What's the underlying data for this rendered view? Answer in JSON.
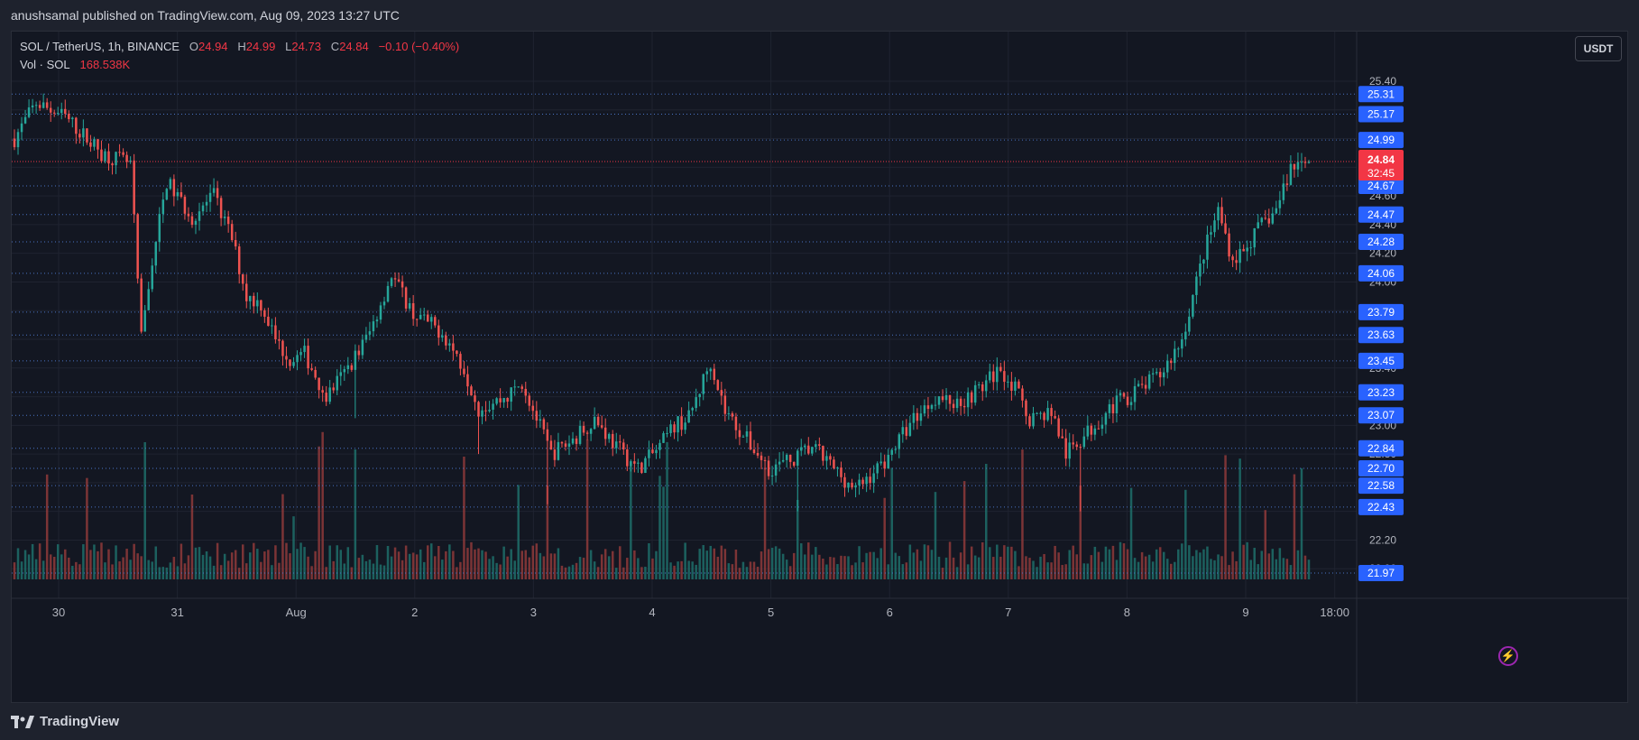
{
  "header": {
    "published_line": "anushsamal published on TradingView.com, Aug 09, 2023 13:27 UTC"
  },
  "legend": {
    "symbol": "SOL / TetherUS, 1h, BINANCE",
    "open_label": "O",
    "open": "24.94",
    "high_label": "H",
    "high": "24.99",
    "low_label": "L",
    "low": "24.73",
    "close_label": "C",
    "close": "24.84",
    "change": "−0.10 (−0.40%)",
    "vol_label": "Vol · SOL",
    "vol_value": "168.538K"
  },
  "currency_button": "USDT",
  "brand": "TradingView",
  "colors": {
    "up": "#26a69a",
    "down": "#ef5350",
    "background": "#131722",
    "grid": "#1f2330",
    "level_line": "#4a73c4",
    "price_label": "#2962ff",
    "current_price": "#f23645"
  },
  "chart_data": {
    "type": "candlestick",
    "symbol": "SOL / TetherUS",
    "interval": "1h",
    "exchange": "BINANCE",
    "ylim": [
      21.9,
      25.5
    ],
    "y_ticks": [
      "25.40",
      "25.20",
      "25.00",
      "24.80",
      "24.60",
      "24.40",
      "24.20",
      "24.00",
      "23.80",
      "23.60",
      "23.40",
      "23.20",
      "23.00",
      "22.80",
      "22.60",
      "22.40",
      "22.20",
      "22.00"
    ],
    "x_ticks": [
      {
        "label": "30",
        "day": 0
      },
      {
        "label": "31",
        "day": 1
      },
      {
        "label": "Aug",
        "day": 2
      },
      {
        "label": "2",
        "day": 3
      },
      {
        "label": "3",
        "day": 4
      },
      {
        "label": "4",
        "day": 5
      },
      {
        "label": "5",
        "day": 6
      },
      {
        "label": "6",
        "day": 7
      },
      {
        "label": "7",
        "day": 8
      },
      {
        "label": "8",
        "day": 9
      },
      {
        "label": "9",
        "day": 10
      },
      {
        "label": "18:00",
        "day": 10.75
      }
    ],
    "horizontal_levels": [
      "25.31",
      "25.17",
      "24.99",
      "24.67",
      "24.47",
      "24.28",
      "24.06",
      "23.79",
      "23.63",
      "23.45",
      "23.23",
      "23.07",
      "22.84",
      "22.70",
      "22.58",
      "22.43",
      "21.97"
    ],
    "current_price": {
      "value": "24.84",
      "countdown": "32:45"
    },
    "anchors": [
      [
        0,
        25.0
      ],
      [
        6,
        25.25
      ],
      [
        14,
        25.15
      ],
      [
        24,
        24.9
      ],
      [
        32,
        24.82
      ],
      [
        35,
        23.6
      ],
      [
        38,
        24.15
      ],
      [
        42,
        24.7
      ],
      [
        49,
        24.45
      ],
      [
        55,
        24.6
      ],
      [
        60,
        24.3
      ],
      [
        64,
        23.9
      ],
      [
        68,
        23.85
      ],
      [
        72,
        23.6
      ],
      [
        76,
        23.45
      ],
      [
        80,
        23.5
      ],
      [
        86,
        23.2
      ],
      [
        92,
        23.4
      ],
      [
        98,
        23.65
      ],
      [
        104,
        24.05
      ],
      [
        110,
        23.78
      ],
      [
        118,
        23.65
      ],
      [
        124,
        23.4
      ],
      [
        128,
        23.12
      ],
      [
        136,
        23.2
      ],
      [
        140,
        23.3
      ],
      [
        148,
        22.8
      ],
      [
        154,
        22.9
      ],
      [
        160,
        23.05
      ],
      [
        166,
        22.85
      ],
      [
        172,
        22.7
      ],
      [
        178,
        22.85
      ],
      [
        182,
        23.0
      ],
      [
        186,
        23.05
      ],
      [
        192,
        23.45
      ],
      [
        196,
        23.1
      ],
      [
        202,
        22.9
      ],
      [
        208,
        22.7
      ],
      [
        214,
        22.75
      ],
      [
        220,
        22.85
      ],
      [
        226,
        22.7
      ],
      [
        232,
        22.55
      ],
      [
        240,
        22.75
      ],
      [
        248,
        23.05
      ],
      [
        254,
        23.2
      ],
      [
        260,
        23.15
      ],
      [
        266,
        23.25
      ],
      [
        272,
        23.4
      ],
      [
        276,
        23.25
      ],
      [
        280,
        23.05
      ],
      [
        286,
        23.1
      ],
      [
        290,
        22.8
      ],
      [
        296,
        22.95
      ],
      [
        302,
        23.12
      ],
      [
        310,
        23.25
      ],
      [
        316,
        23.35
      ],
      [
        322,
        23.6
      ],
      [
        328,
        24.2
      ],
      [
        332,
        24.5
      ],
      [
        336,
        24.15
      ],
      [
        340,
        24.25
      ],
      [
        344,
        24.4
      ],
      [
        348,
        24.5
      ],
      [
        352,
        24.8
      ],
      [
        356,
        24.84
      ]
    ],
    "volume_note": "volume bars per candle, colored by candle direction"
  }
}
